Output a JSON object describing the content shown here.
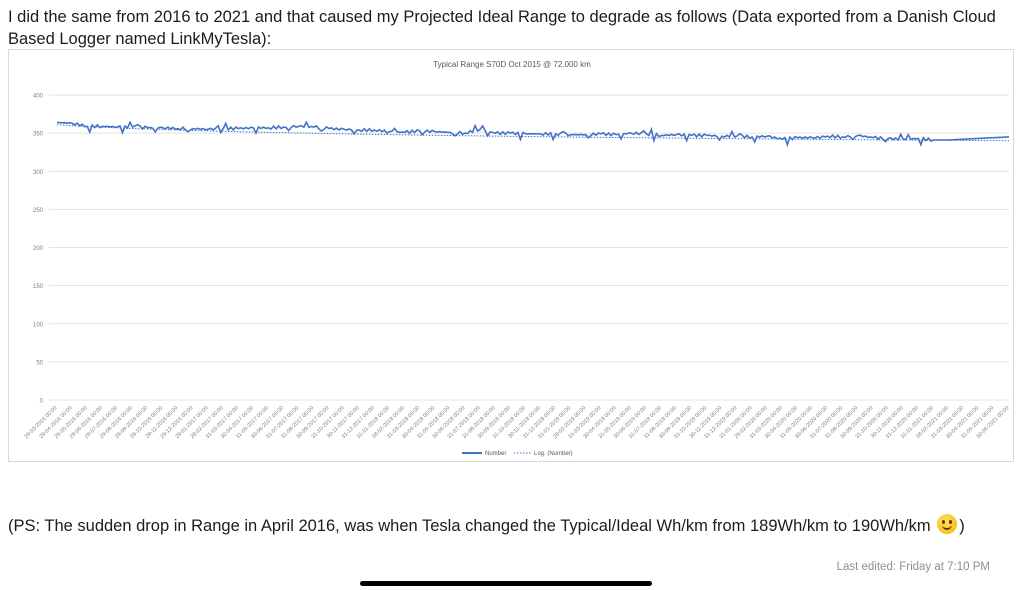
{
  "post": {
    "intro": "I did the same from 2016 to 2021 and that caused my Projected Ideal Range to degrade as follows (Data exported from a Danish Cloud Based Logger named LinkMyTesla):",
    "ps_before": "(PS: The sudden drop in Range in April 2016, was when Tesla changed the Typical/Ideal Wh/km from 189Wh/km to 190Wh/km",
    "ps_after": ")",
    "emoji": "smiley-face",
    "last_edited": "Last edited: Friday at 7:10 PM"
  },
  "chart_data": {
    "type": "line",
    "title": "Typical Range S70D Oct 2015 @ 72.000 km",
    "xlabel": "",
    "ylabel": "",
    "ylim": [
      0,
      400
    ],
    "yticks": [
      "0",
      "50",
      "100",
      "150",
      "200",
      "250",
      "300",
      "350",
      "400"
    ],
    "grid": true,
    "legend": "bottom",
    "categories": [
      "29-03-2016 00:00",
      "29-04-2016 00:00",
      "29-05-2016 00:00",
      "29-06-2016 00:00",
      "29-07-2016 00:00",
      "29-08-2016 00:00",
      "29-09-2016 00:00",
      "29-10-2016 00:00",
      "29-11-2016 00:00",
      "29-12-2016 00:00",
      "29-01-2017 00:00",
      "28-02-2017 00:00",
      "31-03-2017 00:00",
      "30-04-2017 00:00",
      "31-05-2017 00:00",
      "30-06-2017 00:00",
      "31-07-2017 00:00",
      "31-08-2017 00:00",
      "30-09-2017 00:00",
      "31-10-2017 00:00",
      "30-11-2017 00:00",
      "31-12-2017 00:00",
      "31-01-2018 00:00",
      "28-02-2018 00:00",
      "31-03-2018 00:00",
      "30-04-2018 00:00",
      "31-05-2018 00:00",
      "30-06-2018 00:00",
      "31-07-2018 00:00",
      "31-08-2018 00:00",
      "30-09-2018 00:00",
      "31-10-2018 00:00",
      "30-11-2018 00:00",
      "31-12-2018 00:00",
      "31-01-2019 00:00",
      "28-02-2019 00:00",
      "31-03-2019 00:00",
      "30-04-2019 00:00",
      "31-05-2019 00:00",
      "30-06-2019 00:00",
      "31-07-2019 00:00",
      "31-08-2019 00:00",
      "30-09-2019 00:00",
      "31-10-2019 00:00",
      "30-11-2019 00:00",
      "31-12-2019 00:00",
      "31-01-2020 00:00",
      "29-02-2020 00:00",
      "31-03-2020 00:00",
      "30-04-2020 00:00",
      "31-05-2020 00:00",
      "30-06-2020 00:00",
      "31-07-2020 00:00",
      "31-08-2020 00:00",
      "30-09-2020 00:00",
      "31-10-2020 00:00",
      "30-11-2020 00:00",
      "31-12-2020 00:00",
      "31-01-2021 00:00",
      "28-02-2021 00:00",
      "31-03-2021 00:00",
      "30-04-2021 00:00",
      "31-05-2021 00:00",
      "30-06-2021 00:00"
    ],
    "series": [
      {
        "name": "Number",
        "color": "#4472c4",
        "values": [
          364,
          363,
          359,
          359,
          358,
          358,
          357,
          357,
          356,
          356,
          355,
          356,
          356,
          357,
          357,
          358,
          359,
          358,
          356,
          355,
          354,
          354,
          352,
          351,
          353,
          352,
          351,
          350,
          355,
          350,
          350,
          349,
          349,
          349,
          348,
          348,
          349,
          348,
          350,
          349,
          347,
          348,
          347,
          347,
          346,
          346,
          345,
          346,
          342,
          344,
          344,
          346,
          345,
          347,
          344,
          343,
          342,
          343,
          341,
          341,
          342,
          343,
          344,
          345
        ]
      },
      {
        "name": "Log. (Number)",
        "color": "#4472c4",
        "style": "dotted",
        "trend": {
          "type": "logarithmic",
          "start": 361,
          "end": 340
        }
      }
    ]
  }
}
